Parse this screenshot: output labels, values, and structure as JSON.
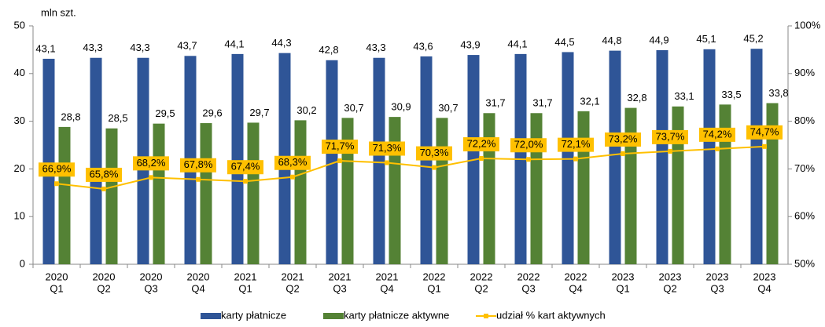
{
  "chart_data": {
    "type": "bar",
    "y_unit_label": "mln szt.",
    "categories": [
      [
        "2020",
        "Q1"
      ],
      [
        "2020",
        "Q2"
      ],
      [
        "2020",
        "Q3"
      ],
      [
        "2020",
        "Q4"
      ],
      [
        "2021",
        "Q1"
      ],
      [
        "2021",
        "Q2"
      ],
      [
        "2021",
        "Q3"
      ],
      [
        "2021",
        "Q4"
      ],
      [
        "2022",
        "Q1"
      ],
      [
        "2022",
        "Q2"
      ],
      [
        "2022",
        "Q3"
      ],
      [
        "2022",
        "Q4"
      ],
      [
        "2023",
        "Q1"
      ],
      [
        "2023",
        "Q2"
      ],
      [
        "2023",
        "Q3"
      ],
      [
        "2023",
        "Q4"
      ]
    ],
    "series": [
      {
        "name": "karty płatnicze",
        "color": "#2f5597",
        "values": [
          43.1,
          43.3,
          43.3,
          43.7,
          44.1,
          44.3,
          42.8,
          43.3,
          43.6,
          43.9,
          44.1,
          44.5,
          44.8,
          44.9,
          45.1,
          45.2
        ],
        "value_labels": [
          "43,1",
          "43,3",
          "43,3",
          "43,7",
          "44,1",
          "44,3",
          "42,8",
          "43,3",
          "43,6",
          "43,9",
          "44,1",
          "44,5",
          "44,8",
          "44,9",
          "45,1",
          "45,2"
        ]
      },
      {
        "name": "karty płatnicze aktywne",
        "color": "#548235",
        "values": [
          28.8,
          28.5,
          29.5,
          29.6,
          29.7,
          30.2,
          30.7,
          30.9,
          30.7,
          31.7,
          31.7,
          32.1,
          32.8,
          33.1,
          33.5,
          33.8
        ],
        "value_labels": [
          "28,8",
          "28,5",
          "29,5",
          "29,6",
          "29,7",
          "30,2",
          "30,7",
          "30,9",
          "30,7",
          "31,7",
          "31,7",
          "32,1",
          "32,8",
          "33,1",
          "33,5",
          "33,8"
        ]
      },
      {
        "name": "udział % kart aktywnych",
        "color": "#ffc000",
        "type": "line",
        "axis": "y2",
        "values": [
          66.9,
          65.8,
          68.2,
          67.8,
          67.4,
          68.3,
          71.7,
          71.3,
          70.3,
          72.2,
          72.0,
          72.1,
          73.2,
          73.7,
          74.2,
          74.7
        ],
        "value_labels": [
          "66,9%",
          "65,8%",
          "68,2%",
          "67,8%",
          "67,4%",
          "68,3%",
          "71,7%",
          "71,3%",
          "70,3%",
          "72,2%",
          "72,0%",
          "72,1%",
          "73,2%",
          "73,7%",
          "74,2%",
          "74,7%"
        ]
      }
    ],
    "ylim": [
      0,
      50
    ],
    "yticks": [
      0,
      10,
      20,
      30,
      40,
      50
    ],
    "y2lim": [
      50,
      100
    ],
    "y2ticks": [
      {
        "value": 50,
        "label": "50%"
      },
      {
        "value": 60,
        "label": "60%"
      },
      {
        "value": 70,
        "label": "70%"
      },
      {
        "value": 80,
        "label": "80%"
      },
      {
        "value": 90,
        "label": "90%"
      },
      {
        "value": 100,
        "label": "100%"
      }
    ],
    "legend": "bottom"
  }
}
